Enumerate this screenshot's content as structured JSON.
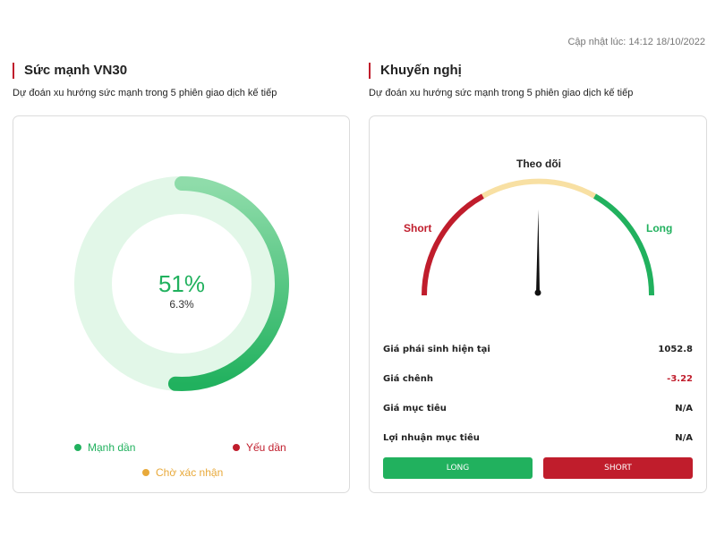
{
  "updated": "Cập nhật lúc: 14:12 18/10/2022",
  "colors": {
    "accent_red": "#c01d2c",
    "accent_green": "#21b15e",
    "pending_yellow": "#e8a93a",
    "gauge_yellow": "#f8e0a3"
  },
  "strength": {
    "title": "Sức mạnh VN30",
    "subtitle": "Dự đoán xu hướng sức mạnh trong 5 phiên giao dịch kế tiếp",
    "percent_label": "51%",
    "secondary_label": "6.3%",
    "progress_fraction": 0.51,
    "legend": [
      {
        "label": "Mạnh dần",
        "color": "#21b15e"
      },
      {
        "label": "Yếu dần",
        "color": "#c01d2c"
      },
      {
        "label": "Chờ xác nhận",
        "color": "#e8a93a"
      }
    ]
  },
  "recommend": {
    "title": "Khuyến nghị",
    "subtitle": "Dự đoán xu hướng sức mạnh trong 5 phiên giao dịch kế tiếp",
    "gauge": {
      "left_label": "Short",
      "top_label": "Theo dõi",
      "right_label": "Long",
      "needle_fraction": 0.5
    },
    "rows": [
      {
        "label": "Giá phái sinh hiện tại",
        "value": "1052.8"
      },
      {
        "label": "Giá chênh",
        "value": "-3.22"
      },
      {
        "label": "Giá mục tiêu",
        "value": "N/A"
      },
      {
        "label": "Lợi nhuận mục tiêu",
        "value": "N/A"
      }
    ],
    "buttons": {
      "long": "LONG",
      "short": "SHORT"
    }
  }
}
